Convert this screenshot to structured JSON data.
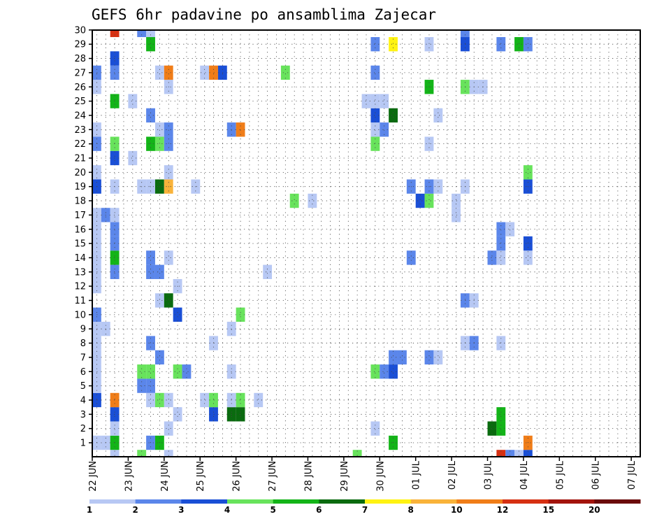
{
  "chart_data": {
    "type": "heatmap",
    "title": "GEFS 6hr padavine po ansamblima Zajecar",
    "xlabel": "",
    "ylabel": "",
    "grid": true,
    "x_tick_labels": [
      "22 JUN",
      "23 JUN",
      "24 JUN",
      "25 JUN",
      "26 JUN",
      "27 JUN",
      "28 JUN",
      "29 JUN",
      "30 JUN",
      "01 JUL",
      "02 JUL",
      "03 JUL",
      "04 JUL",
      "05 JUL",
      "06 JUL",
      "07 JUL"
    ],
    "y_tick_labels": [
      "1",
      "2",
      "3",
      "4",
      "5",
      "6",
      "7",
      "8",
      "9",
      "10",
      "11",
      "12",
      "13",
      "14",
      "15",
      "16",
      "17",
      "18",
      "19",
      "20",
      "21",
      "22",
      "23",
      "24",
      "25",
      "26",
      "27",
      "28",
      "29",
      "30"
    ],
    "legend": {
      "placement": "bottom",
      "labels": [
        "1",
        "2",
        "3",
        "4",
        "5",
        "6",
        "7",
        "8",
        "10",
        "12",
        "15",
        "20"
      ],
      "colors": [
        "#b7c8f4",
        "#5b86ea",
        "#1a4fd6",
        "#68e35c",
        "#13b418",
        "#0a6b0f",
        "#fff312",
        "#f9b33a",
        "#f07d18",
        "#d63012",
        "#a3140d",
        "#6b0a0a"
      ]
    },
    "cells": [
      {
        "t": 0,
        "e": 1,
        "c": 1
      },
      {
        "t": 0,
        "e": 4,
        "c": 3
      },
      {
        "t": 0,
        "e": 5,
        "c": 1
      },
      {
        "t": 0,
        "e": 6,
        "c": 1
      },
      {
        "t": 0,
        "e": 7,
        "c": 1
      },
      {
        "t": 0,
        "e": 8,
        "c": 1
      },
      {
        "t": 0,
        "e": 9,
        "c": 1
      },
      {
        "t": 0,
        "e": 10,
        "c": 2
      },
      {
        "t": 0,
        "e": 12,
        "c": 1
      },
      {
        "t": 0,
        "e": 13,
        "c": 1
      },
      {
        "t": 0,
        "e": 14,
        "c": 1
      },
      {
        "t": 0,
        "e": 15,
        "c": 1
      },
      {
        "t": 0,
        "e": 16,
        "c": 1
      },
      {
        "t": 0,
        "e": 17,
        "c": 1
      },
      {
        "t": 0,
        "e": 19,
        "c": 3
      },
      {
        "t": 0,
        "e": 20,
        "c": 1
      },
      {
        "t": 0,
        "e": 22,
        "c": 2
      },
      {
        "t": 0,
        "e": 23,
        "c": 1
      },
      {
        "t": 0,
        "e": 26,
        "c": 1
      },
      {
        "t": 0,
        "e": 27,
        "c": 2
      },
      {
        "t": 1,
        "e": 9,
        "c": 1
      },
      {
        "t": 1,
        "e": 17,
        "c": 2
      },
      {
        "t": 1,
        "e": 1,
        "c": 1
      },
      {
        "t": 2,
        "e": 0,
        "c": 1
      },
      {
        "t": 2,
        "e": 1,
        "c": 5
      },
      {
        "t": 2,
        "e": 2,
        "c": 1
      },
      {
        "t": 2,
        "e": 3,
        "c": 3
      },
      {
        "t": 2,
        "e": 4,
        "c": 9
      },
      {
        "t": 2,
        "e": 13,
        "c": 2
      },
      {
        "t": 2,
        "e": 14,
        "c": 5
      },
      {
        "t": 2,
        "e": 15,
        "c": 2
      },
      {
        "t": 2,
        "e": 16,
        "c": 2
      },
      {
        "t": 2,
        "e": 17,
        "c": 1
      },
      {
        "t": 2,
        "e": 19,
        "c": 1
      },
      {
        "t": 2,
        "e": 21,
        "c": 3
      },
      {
        "t": 2,
        "e": 22,
        "c": 4
      },
      {
        "t": 2,
        "e": 25,
        "c": 5
      },
      {
        "t": 2,
        "e": 27,
        "c": 2
      },
      {
        "t": 2,
        "e": 28,
        "c": 3
      },
      {
        "t": 2,
        "e": 30,
        "c": 10
      },
      {
        "t": 4,
        "e": 25,
        "c": 1
      },
      {
        "t": 4,
        "e": 21,
        "c": 1
      },
      {
        "t": 5,
        "e": 0,
        "c": 4
      },
      {
        "t": 5,
        "e": 5,
        "c": 2
      },
      {
        "t": 5,
        "e": 6,
        "c": 4
      },
      {
        "t": 5,
        "e": 19,
        "c": 1
      },
      {
        "t": 5,
        "e": 30,
        "c": 2
      },
      {
        "t": 6,
        "e": 1,
        "c": 2
      },
      {
        "t": 6,
        "e": 4,
        "c": 1
      },
      {
        "t": 6,
        "e": 5,
        "c": 2
      },
      {
        "t": 6,
        "e": 6,
        "c": 4
      },
      {
        "t": 6,
        "e": 8,
        "c": 2
      },
      {
        "t": 6,
        "e": 13,
        "c": 2
      },
      {
        "t": 6,
        "e": 14,
        "c": 2
      },
      {
        "t": 6,
        "e": 19,
        "c": 1
      },
      {
        "t": 6,
        "e": 22,
        "c": 5
      },
      {
        "t": 6,
        "e": 24,
        "c": 2
      },
      {
        "t": 6,
        "e": 29,
        "c": 5
      },
      {
        "t": 6,
        "e": 30,
        "c": 1
      },
      {
        "t": 7,
        "e": 1,
        "c": 5
      },
      {
        "t": 7,
        "e": 4,
        "c": 4
      },
      {
        "t": 7,
        "e": 7,
        "c": 2
      },
      {
        "t": 7,
        "e": 11,
        "c": 1
      },
      {
        "t": 7,
        "e": 13,
        "c": 2
      },
      {
        "t": 7,
        "e": 19,
        "c": 6
      },
      {
        "t": 7,
        "e": 22,
        "c": 4
      },
      {
        "t": 7,
        "e": 23,
        "c": 1
      },
      {
        "t": 7,
        "e": 27,
        "c": 1
      },
      {
        "t": 8,
        "e": 0,
        "c": 1
      },
      {
        "t": 8,
        "e": 2,
        "c": 1
      },
      {
        "t": 8,
        "e": 4,
        "c": 1
      },
      {
        "t": 8,
        "e": 11,
        "c": 6
      },
      {
        "t": 8,
        "e": 14,
        "c": 1
      },
      {
        "t": 8,
        "e": 19,
        "c": 8
      },
      {
        "t": 8,
        "e": 20,
        "c": 1
      },
      {
        "t": 8,
        "e": 22,
        "c": 2
      },
      {
        "t": 8,
        "e": 23,
        "c": 2
      },
      {
        "t": 8,
        "e": 26,
        "c": 1
      },
      {
        "t": 8,
        "e": 27,
        "c": 9
      },
      {
        "t": 9,
        "e": 3,
        "c": 1
      },
      {
        "t": 9,
        "e": 6,
        "c": 4
      },
      {
        "t": 9,
        "e": 10,
        "c": 3
      },
      {
        "t": 9,
        "e": 12,
        "c": 1
      },
      {
        "t": 10,
        "e": 6,
        "c": 2
      },
      {
        "t": 11,
        "e": 19,
        "c": 1
      },
      {
        "t": 12,
        "e": 4,
        "c": 1
      },
      {
        "t": 12,
        "e": 27,
        "c": 1
      },
      {
        "t": 13,
        "e": 3,
        "c": 3
      },
      {
        "t": 13,
        "e": 4,
        "c": 4
      },
      {
        "t": 13,
        "e": 8,
        "c": 1
      },
      {
        "t": 13,
        "e": 27,
        "c": 9
      },
      {
        "t": 14,
        "e": 27,
        "c": 3
      },
      {
        "t": 15,
        "e": 3,
        "c": 6
      },
      {
        "t": 15,
        "e": 4,
        "c": 1
      },
      {
        "t": 15,
        "e": 6,
        "c": 1
      },
      {
        "t": 15,
        "e": 9,
        "c": 1
      },
      {
        "t": 15,
        "e": 23,
        "c": 2
      },
      {
        "t": 16,
        "e": 3,
        "c": 6
      },
      {
        "t": 16,
        "e": 4,
        "c": 4
      },
      {
        "t": 16,
        "e": 10,
        "c": 4
      },
      {
        "t": 16,
        "e": 23,
        "c": 9
      },
      {
        "t": 18,
        "e": 4,
        "c": 1
      },
      {
        "t": 19,
        "e": 13,
        "c": 1
      },
      {
        "t": 21,
        "e": 27,
        "c": 4
      },
      {
        "t": 22,
        "e": 18,
        "c": 4
      },
      {
        "t": 24,
        "e": 18,
        "c": 1
      },
      {
        "t": 29,
        "e": 0,
        "c": 4
      },
      {
        "t": 30,
        "e": 25,
        "c": 1
      },
      {
        "t": 31,
        "e": 2,
        "c": 1
      },
      {
        "t": 31,
        "e": 6,
        "c": 4
      },
      {
        "t": 31,
        "e": 22,
        "c": 4
      },
      {
        "t": 31,
        "e": 23,
        "c": 1
      },
      {
        "t": 31,
        "e": 24,
        "c": 3
      },
      {
        "t": 31,
        "e": 25,
        "c": 1
      },
      {
        "t": 31,
        "e": 27,
        "c": 2
      },
      {
        "t": 31,
        "e": 29,
        "c": 2
      },
      {
        "t": 32,
        "e": 6,
        "c": 2
      },
      {
        "t": 32,
        "e": 23,
        "c": 2
      },
      {
        "t": 32,
        "e": 25,
        "c": 1
      },
      {
        "t": 33,
        "e": 1,
        "c": 5
      },
      {
        "t": 33,
        "e": 6,
        "c": 3
      },
      {
        "t": 33,
        "e": 7,
        "c": 2
      },
      {
        "t": 33,
        "e": 24,
        "c": 6
      },
      {
        "t": 33,
        "e": 29,
        "c": 7
      },
      {
        "t": 34,
        "e": 7,
        "c": 2
      },
      {
        "t": 35,
        "e": 14,
        "c": 2
      },
      {
        "t": 35,
        "e": 19,
        "c": 2
      },
      {
        "t": 36,
        "e": 18,
        "c": 3
      },
      {
        "t": 37,
        "e": 7,
        "c": 2
      },
      {
        "t": 37,
        "e": 18,
        "c": 4
      },
      {
        "t": 37,
        "e": 19,
        "c": 2
      },
      {
        "t": 37,
        "e": 22,
        "c": 1
      },
      {
        "t": 37,
        "e": 26,
        "c": 5
      },
      {
        "t": 37,
        "e": 29,
        "c": 1
      },
      {
        "t": 38,
        "e": 7,
        "c": 1
      },
      {
        "t": 38,
        "e": 19,
        "c": 1
      },
      {
        "t": 38,
        "e": 24,
        "c": 1
      },
      {
        "t": 40,
        "e": 17,
        "c": 1
      },
      {
        "t": 40,
        "e": 18,
        "c": 1
      },
      {
        "t": 41,
        "e": 8,
        "c": 1
      },
      {
        "t": 41,
        "e": 11,
        "c": 2
      },
      {
        "t": 41,
        "e": 19,
        "c": 1
      },
      {
        "t": 41,
        "e": 26,
        "c": 4
      },
      {
        "t": 41,
        "e": 29,
        "c": 3
      },
      {
        "t": 41,
        "e": 30,
        "c": 2
      },
      {
        "t": 42,
        "e": 8,
        "c": 2
      },
      {
        "t": 42,
        "e": 11,
        "c": 1
      },
      {
        "t": 42,
        "e": 26,
        "c": 1
      },
      {
        "t": 43,
        "e": 26,
        "c": 1
      },
      {
        "t": 44,
        "e": 2,
        "c": 6
      },
      {
        "t": 44,
        "e": 14,
        "c": 2
      },
      {
        "t": 45,
        "e": 0,
        "c": 10
      },
      {
        "t": 45,
        "e": 2,
        "c": 5
      },
      {
        "t": 45,
        "e": 3,
        "c": 5
      },
      {
        "t": 45,
        "e": 8,
        "c": 1
      },
      {
        "t": 45,
        "e": 14,
        "c": 1
      },
      {
        "t": 45,
        "e": 15,
        "c": 2
      },
      {
        "t": 45,
        "e": 16,
        "c": 2
      },
      {
        "t": 45,
        "e": 29,
        "c": 2
      },
      {
        "t": 46,
        "e": 0,
        "c": 2
      },
      {
        "t": 46,
        "e": 16,
        "c": 1
      },
      {
        "t": 47,
        "e": 0,
        "c": 1
      },
      {
        "t": 47,
        "e": 29,
        "c": 5
      },
      {
        "t": 48,
        "e": 0,
        "c": 3
      },
      {
        "t": 48,
        "e": 1,
        "c": 9
      },
      {
        "t": 48,
        "e": 14,
        "c": 1
      },
      {
        "t": 48,
        "e": 15,
        "c": 3
      },
      {
        "t": 48,
        "e": 19,
        "c": 3
      },
      {
        "t": 48,
        "e": 20,
        "c": 4
      },
      {
        "t": 48,
        "e": 29,
        "c": 2
      }
    ]
  }
}
